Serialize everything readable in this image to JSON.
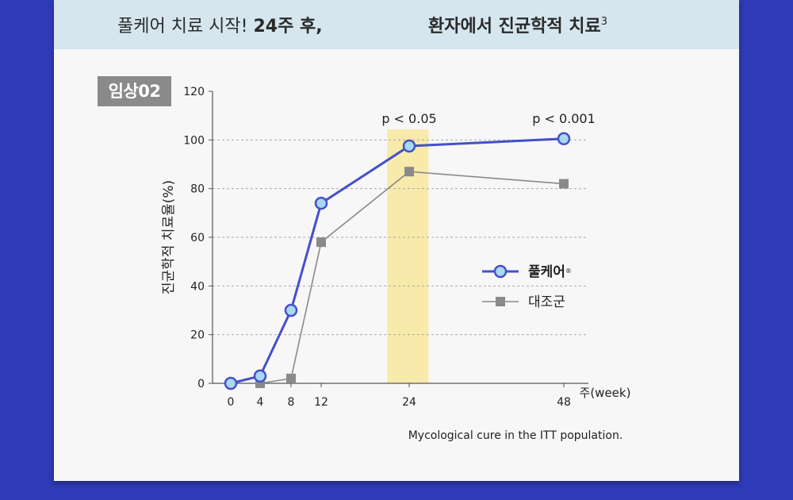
{
  "banner": {
    "left_prefix": "풀케어 치료 시작! ",
    "left_bold": "24주 후,",
    "right_bold": "환자에서 진균학적 치료",
    "right_sup": "3"
  },
  "badge": "임상02",
  "chart_data": {
    "type": "line",
    "title": "",
    "xlabel": "주(week)",
    "ylabel": "진균학적 치료율(%)",
    "ylim": [
      0,
      120
    ],
    "yticks": [
      0,
      20,
      40,
      60,
      80,
      100,
      120
    ],
    "xticks": [
      0,
      4,
      8,
      12,
      24,
      48
    ],
    "gridlines_at": [
      20,
      40,
      60,
      80,
      100
    ],
    "highlight_band": {
      "from": 21,
      "to": 27
    },
    "series": [
      {
        "name": "풀케어",
        "name_sup": "®",
        "color": "#4550c8",
        "marker": "circle",
        "x": [
          0,
          4,
          8,
          12,
          24,
          48
        ],
        "values": [
          0,
          3,
          30,
          74,
          97.5,
          100.5
        ]
      },
      {
        "name": "대조군",
        "color": "#8a8a8a",
        "marker": "square",
        "x": [
          4,
          8,
          12,
          24,
          48
        ],
        "values": [
          0,
          2,
          58,
          87,
          82
        ]
      }
    ],
    "annotations": [
      {
        "text": "p < 0.05",
        "x": 24,
        "y": 112
      },
      {
        "text": "p < 0.001",
        "x": 48,
        "y": 112
      }
    ],
    "footnote": "Mycological cure in the ITT population.",
    "legend_position": "right"
  }
}
